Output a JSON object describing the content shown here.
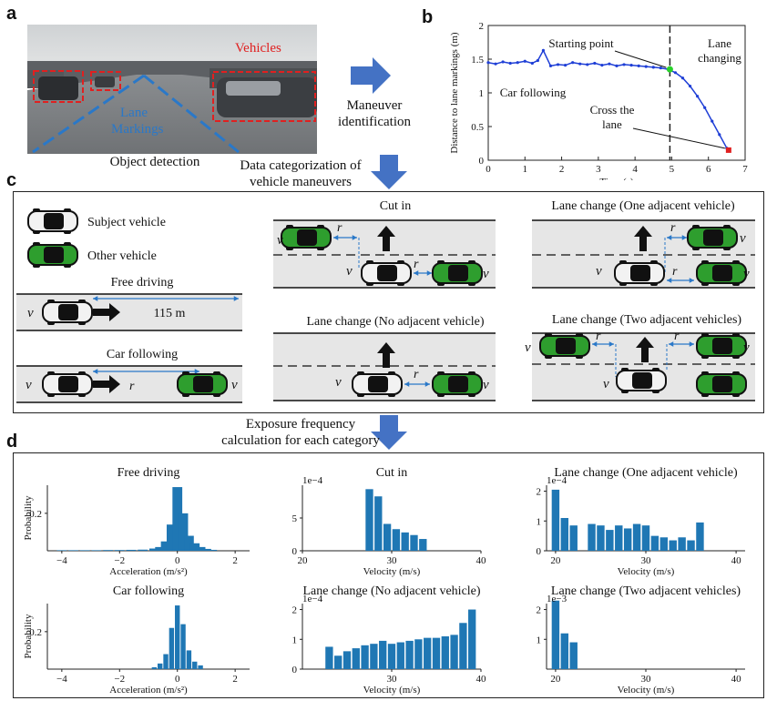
{
  "panels": {
    "a": "a",
    "b": "b",
    "c": "c",
    "d": "d"
  },
  "panel_a": {
    "vehicles_label": "Vehicles",
    "lane_label_1": "Lane",
    "lane_label_2": "Markings",
    "caption": "Object detection"
  },
  "arrows": {
    "maneuver_1": "Maneuver",
    "maneuver_2": "identification",
    "categ_1": "Data categorization of",
    "categ_2": "vehicle maneuvers",
    "exposure_1": "Exposure frequency",
    "exposure_2": "calculation for each category"
  },
  "panel_c": {
    "legend_subject": "Subject vehicle",
    "legend_other": "Other vehicle",
    "free_driving": "Free driving",
    "free_distance": "115 m",
    "car_following": "Car following",
    "cut_in": "Cut in",
    "lc_none": "Lane change (No adjacent vehicle)",
    "lc_one": "Lane change (One adjacent vehicle)",
    "lc_two": "Lane change (Two adjacent vehicles)",
    "v1": "v",
    "v2": "v",
    "v3": "v",
    "s1": "1",
    "s2": "2",
    "s3": "3",
    "r": "r"
  },
  "colors": {
    "blue_arrow": "#4472c4",
    "bar": "#1f77b4",
    "car_green": "#2e9e2e",
    "trace_blue": "#1f3fd6",
    "red_box": "#e02020"
  },
  "chart_data": [
    {
      "type": "line",
      "title": "",
      "xlabel": "Time (s)",
      "ylabel": "Distance to lane markings (m)",
      "xlim": [
        0,
        7
      ],
      "ylim": [
        0,
        2
      ],
      "xticks": [
        "0",
        "1",
        "2",
        "3",
        "4",
        "5",
        "6",
        "7"
      ],
      "yticks": [
        "0",
        "0.5",
        "1",
        "1.5",
        "2"
      ],
      "x": [
        0,
        0.2,
        0.4,
        0.6,
        0.8,
        1.0,
        1.2,
        1.35,
        1.5,
        1.7,
        1.9,
        2.1,
        2.3,
        2.5,
        2.7,
        2.9,
        3.1,
        3.3,
        3.5,
        3.7,
        3.9,
        4.1,
        4.3,
        4.5,
        4.7,
        4.9,
        5.1,
        5.3,
        5.5,
        5.7,
        5.9,
        6.1,
        6.3,
        6.5
      ],
      "y": [
        1.45,
        1.43,
        1.46,
        1.44,
        1.45,
        1.47,
        1.44,
        1.48,
        1.63,
        1.4,
        1.42,
        1.41,
        1.45,
        1.43,
        1.42,
        1.44,
        1.41,
        1.43,
        1.4,
        1.42,
        1.41,
        1.4,
        1.39,
        1.38,
        1.37,
        1.35,
        1.3,
        1.22,
        1.1,
        0.95,
        0.78,
        0.58,
        0.38,
        0.18
      ],
      "annotations": [
        "Starting point",
        "Lane changing",
        "Car following",
        "Cross the lane"
      ],
      "starting_point": [
        4.95,
        1.35
      ],
      "cross_point": [
        6.55,
        0.15
      ]
    },
    {
      "type": "bar",
      "title": "Free driving",
      "ylabel": "Probability",
      "xlabel": "Acceleration (m/s²)",
      "xlim": [
        -4.5,
        2.5
      ],
      "ylim": [
        0,
        0.35
      ],
      "xticks": [
        "−4",
        "−2",
        "0",
        "2"
      ],
      "yticks": [
        "0.2"
      ],
      "x": [
        -4.0,
        -3.6,
        -3.2,
        -2.8,
        -2.4,
        -2.0,
        -1.6,
        -1.2,
        -0.8,
        -0.6,
        -0.4,
        -0.2,
        0.0,
        0.2,
        0.4,
        0.6,
        0.8,
        1.0,
        1.2
      ],
      "values": [
        0.003,
        0.003,
        0.003,
        0.003,
        0.004,
        0.004,
        0.005,
        0.006,
        0.012,
        0.02,
        0.05,
        0.14,
        0.34,
        0.2,
        0.08,
        0.04,
        0.02,
        0.01,
        0.005
      ]
    },
    {
      "type": "bar",
      "title": "Cut in",
      "ylabel": "",
      "xlabel": "Velocity (m/s)",
      "yscale_label": "1e−4",
      "xlim": [
        20,
        40
      ],
      "ylim": [
        0,
        10
      ],
      "xticks": [
        "20",
        "30",
        "40"
      ],
      "yticks": [
        "0",
        "5"
      ],
      "x": [
        27.5,
        28.5,
        29.5,
        30.5,
        31.5,
        32.5,
        33.5
      ],
      "values": [
        9.4,
        8.3,
        4.1,
        3.3,
        2.8,
        2.4,
        1.8
      ]
    },
    {
      "type": "bar",
      "title": "Lane change (One adjacent vehicle)",
      "ylabel": "",
      "xlabel": "Velocity (m/s)",
      "yscale_label": "1e−4",
      "xlim": [
        19,
        41
      ],
      "ylim": [
        0,
        2.2
      ],
      "xticks": [
        "20",
        "30",
        "40"
      ],
      "yticks": [
        "0",
        "1",
        "2"
      ],
      "x": [
        20,
        21,
        22,
        24,
        25,
        26,
        27,
        28,
        29,
        30,
        31,
        32,
        33,
        34,
        35,
        36
      ],
      "values": [
        2.05,
        1.1,
        0.85,
        0.9,
        0.85,
        0.7,
        0.85,
        0.75,
        0.9,
        0.85,
        0.5,
        0.45,
        0.35,
        0.45,
        0.35,
        0.95
      ]
    },
    {
      "type": "bar",
      "title": "Car following",
      "ylabel": "Probability",
      "xlabel": "Acceleration (m/s²)",
      "xlim": [
        -4.5,
        2.5
      ],
      "ylim": [
        0,
        0.35
      ],
      "xticks": [
        "−4",
        "−2",
        "0",
        "2"
      ],
      "yticks": [
        "0.2"
      ],
      "x": [
        -0.8,
        -0.6,
        -0.4,
        -0.2,
        0.0,
        0.2,
        0.4,
        0.6,
        0.8
      ],
      "values": [
        0.01,
        0.03,
        0.08,
        0.22,
        0.34,
        0.24,
        0.1,
        0.04,
        0.02
      ]
    },
    {
      "type": "bar",
      "title": "Lane change (No adjacent vehicle)",
      "ylabel": "",
      "xlabel": "Velocity (m/s)",
      "yscale_label": "1e−4",
      "xlim": [
        20,
        40
      ],
      "ylim": [
        0,
        2.2
      ],
      "xticks": [
        "30",
        "40"
      ],
      "yticks": [
        "0",
        "1",
        "2"
      ],
      "x": [
        23,
        24,
        25,
        26,
        27,
        28,
        29,
        30,
        31,
        32,
        33,
        34,
        35,
        36,
        37,
        38,
        39
      ],
      "values": [
        0.75,
        0.45,
        0.6,
        0.7,
        0.8,
        0.85,
        0.95,
        0.85,
        0.9,
        0.95,
        1.0,
        1.05,
        1.05,
        1.1,
        1.15,
        1.55,
        2.0
      ]
    },
    {
      "type": "bar",
      "title": "Lane change (Two adjacent vehicles)",
      "ylabel": "",
      "xlabel": "Velocity (m/s)",
      "yscale_label": "1e−3",
      "xlim": [
        19,
        41
      ],
      "ylim": [
        0,
        2.2
      ],
      "xticks": [
        "20",
        "30",
        "40"
      ],
      "yticks": [
        "1",
        "2"
      ],
      "x": [
        20,
        21,
        22
      ],
      "values": [
        2.3,
        1.2,
        0.9
      ]
    }
  ]
}
